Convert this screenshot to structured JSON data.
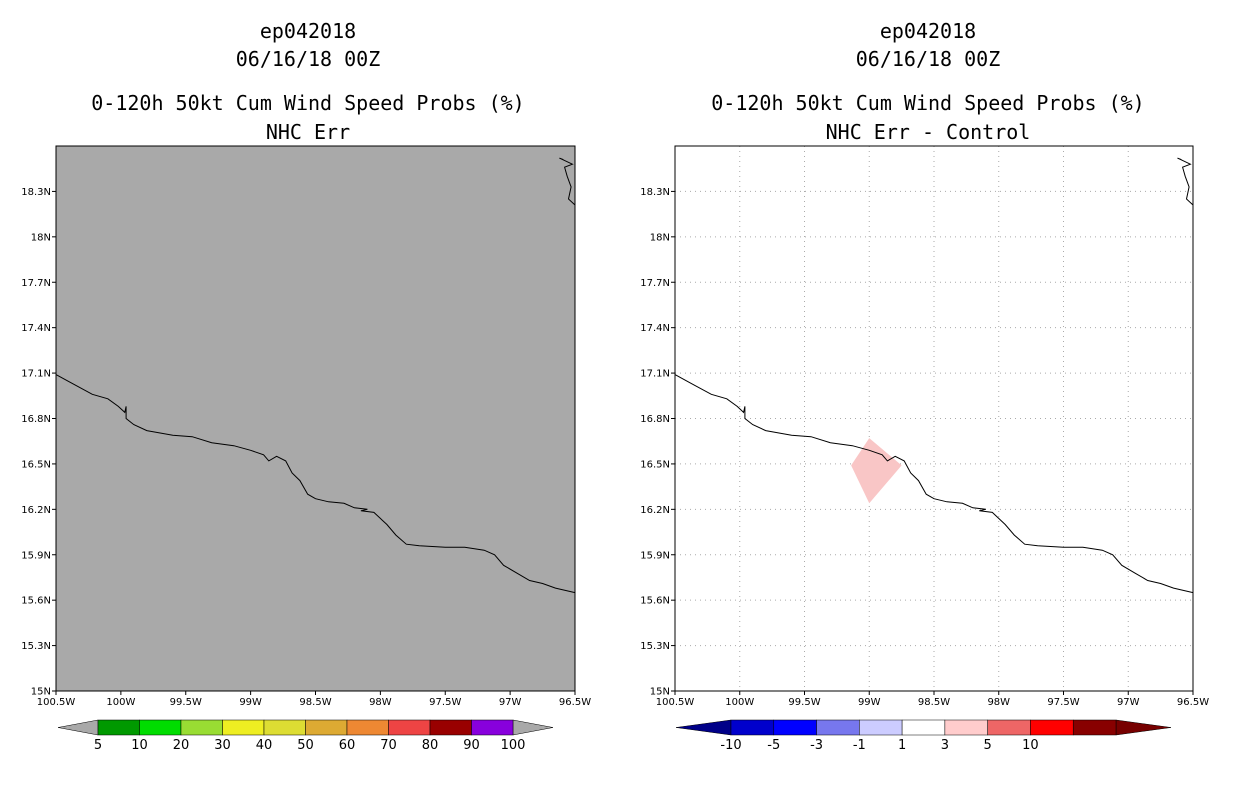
{
  "chart_data": [
    {
      "type": "heatmap",
      "title_lines": [
        "ep042018",
        "06/16/18 00Z",
        "0-120h 50kt Cum Wind Speed Probs (%)",
        "NHC Err"
      ],
      "xlim": [
        -100.5,
        -96.5
      ],
      "ylim": [
        15.0,
        18.6
      ],
      "x_ticks": [
        -100.5,
        -100,
        -99.5,
        -99,
        -98.5,
        -98,
        -97.5,
        -97,
        -96.5
      ],
      "x_tick_labels": [
        "100.5W",
        "100W",
        "99.5W",
        "99W",
        "98.5W",
        "98W",
        "97.5W",
        "97W",
        "96.5W"
      ],
      "y_ticks": [
        15.0,
        15.3,
        15.6,
        15.9,
        16.2,
        16.5,
        16.8,
        17.1,
        17.4,
        17.7,
        18.0,
        18.3
      ],
      "y_tick_labels": [
        "15N",
        "15.3N",
        "15.6N",
        "15.9N",
        "16.2N",
        "16.5N",
        "16.8N",
        "17.1N",
        "17.4N",
        "17.7N",
        "18N",
        "18.3N"
      ],
      "background_color": "#a9a9a9",
      "grid": false,
      "colorbar": {
        "labels": [
          "5",
          "10",
          "20",
          "30",
          "40",
          "50",
          "60",
          "70",
          "80",
          "90",
          "100"
        ],
        "colors": [
          "#009900",
          "#00dd00",
          "#99dd33",
          "#eeee22",
          "#dddd33",
          "#ddaa33",
          "#ee8833",
          "#ee4444",
          "#990000",
          "#8800dd"
        ],
        "under_color": "#a9a9a9",
        "over_color": "#a9a9a9"
      }
    },
    {
      "type": "heatmap",
      "title_lines": [
        "ep042018",
        "06/16/18 00Z",
        "0-120h 50kt Cum Wind Speed Probs (%)",
        "NHC Err - Control"
      ],
      "xlim": [
        -100.5,
        -96.5
      ],
      "ylim": [
        15.0,
        18.6
      ],
      "x_ticks": [
        -100.5,
        -100,
        -99.5,
        -99,
        -98.5,
        -98,
        -97.5,
        -97,
        -96.5
      ],
      "x_tick_labels": [
        "100.5W",
        "100W",
        "99.5W",
        "99W",
        "98.5W",
        "98W",
        "97.5W",
        "97W",
        "96.5W"
      ],
      "y_ticks": [
        15.0,
        15.3,
        15.6,
        15.9,
        16.2,
        16.5,
        16.8,
        17.1,
        17.4,
        17.7,
        18.0,
        18.3
      ],
      "y_tick_labels": [
        "15N",
        "15.3N",
        "15.6N",
        "15.9N",
        "16.2N",
        "16.5N",
        "16.8N",
        "17.1N",
        "17.4N",
        "17.7N",
        "18N",
        "18.3N"
      ],
      "background_color": "#ffffff",
      "grid": true,
      "anomaly_region": {
        "value_range": "1 to 3",
        "color": "#f9c6c6",
        "polygon": [
          [
            -99.0,
            16.67
          ],
          [
            -98.75,
            16.49
          ],
          [
            -99.0,
            16.24
          ],
          [
            -99.14,
            16.49
          ]
        ]
      },
      "colorbar": {
        "labels": [
          "-10",
          "-5",
          "-3",
          "-1",
          "1",
          "3",
          "5",
          "10"
        ],
        "colors": [
          "#0000cc",
          "#0000ff",
          "#7777ee",
          "#ccccff",
          "#ffffff",
          "#ffcccc",
          "#ee6666",
          "#ff0000",
          "#880000"
        ],
        "under_color": "#000088",
        "over_color": "#770000"
      }
    }
  ],
  "coastline": [
    [
      -100.5,
      17.09
    ],
    [
      -100.35,
      17.02
    ],
    [
      -100.22,
      16.96
    ],
    [
      -100.1,
      16.93
    ],
    [
      -100.02,
      16.88
    ],
    [
      -99.97,
      16.84
    ],
    [
      -99.96,
      16.88
    ],
    [
      -99.96,
      16.8
    ],
    [
      -99.9,
      16.76
    ],
    [
      -99.8,
      16.72
    ],
    [
      -99.6,
      16.69
    ],
    [
      -99.45,
      16.68
    ],
    [
      -99.3,
      16.64
    ],
    [
      -99.13,
      16.62
    ],
    [
      -99.0,
      16.59
    ],
    [
      -98.9,
      16.56
    ],
    [
      -98.86,
      16.52
    ],
    [
      -98.8,
      16.55
    ],
    [
      -98.73,
      16.52
    ],
    [
      -98.68,
      16.44
    ],
    [
      -98.62,
      16.39
    ],
    [
      -98.56,
      16.3
    ],
    [
      -98.5,
      16.27
    ],
    [
      -98.4,
      16.25
    ],
    [
      -98.28,
      16.24
    ],
    [
      -98.2,
      16.21
    ],
    [
      -98.1,
      16.2
    ],
    [
      -98.15,
      16.19
    ],
    [
      -98.05,
      16.18
    ],
    [
      -97.95,
      16.1
    ],
    [
      -97.88,
      16.03
    ],
    [
      -97.8,
      15.97
    ],
    [
      -97.7,
      15.96
    ],
    [
      -97.5,
      15.95
    ],
    [
      -97.35,
      15.95
    ],
    [
      -97.2,
      15.93
    ],
    [
      -97.12,
      15.9
    ],
    [
      -97.05,
      15.83
    ],
    [
      -96.95,
      15.78
    ],
    [
      -96.85,
      15.73
    ],
    [
      -96.75,
      15.71
    ],
    [
      -96.65,
      15.68
    ],
    [
      -96.5,
      15.65
    ]
  ],
  "coastline_ne": [
    [
      -96.59,
      18.51
    ],
    [
      -96.62,
      18.52
    ],
    [
      -96.52,
      18.48
    ],
    [
      -96.58,
      18.46
    ],
    [
      -96.56,
      18.4
    ],
    [
      -96.53,
      18.33
    ],
    [
      -96.55,
      18.25
    ],
    [
      -96.5,
      18.21
    ]
  ]
}
